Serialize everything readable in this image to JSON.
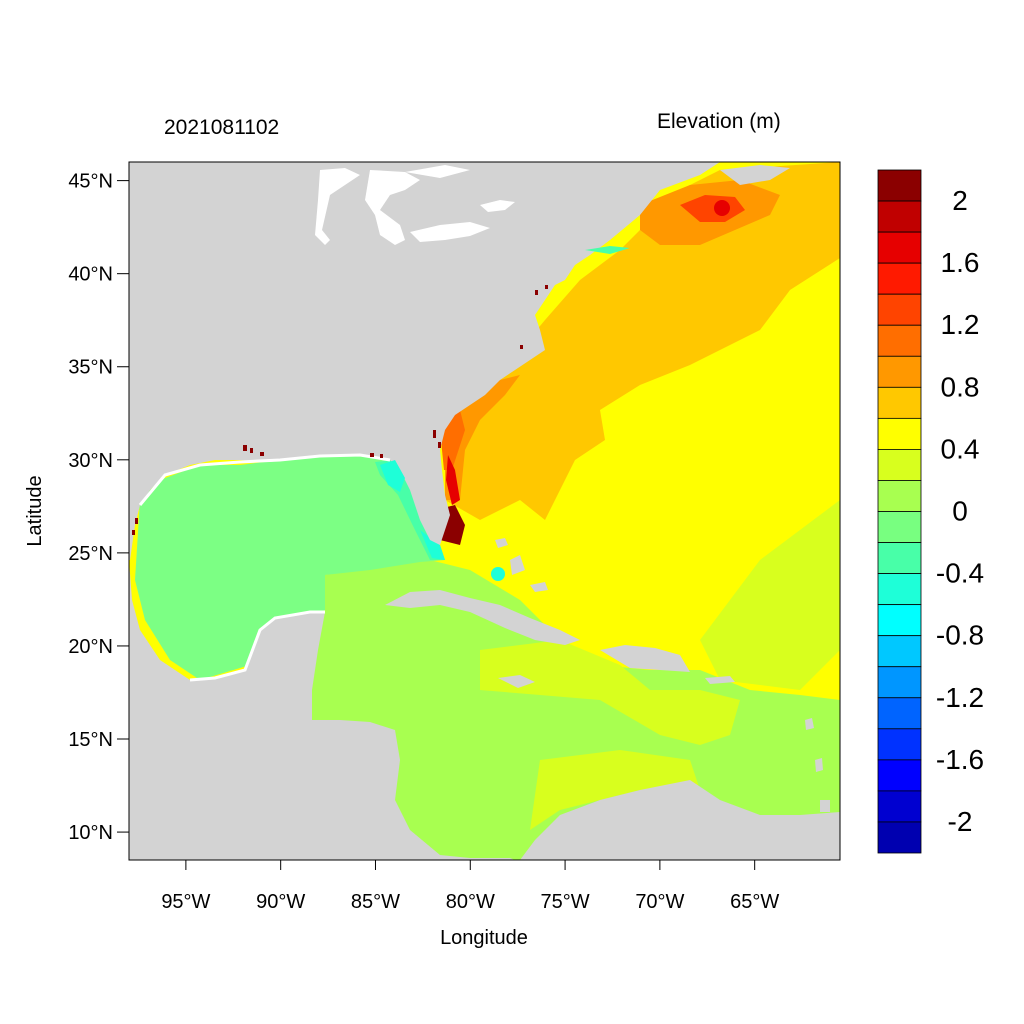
{
  "header": {
    "date_label": "2021081102",
    "variable_label": "Elevation (m)"
  },
  "axes": {
    "xlabel": "Longitude",
    "ylabel": "Latitude",
    "x_ticks": [
      "95°W",
      "90°W",
      "85°W",
      "80°W",
      "75°W",
      "70°W",
      "65°W"
    ],
    "y_ticks": [
      "45°N",
      "40°N",
      "35°N",
      "30°N",
      "25°N",
      "20°N",
      "15°N",
      "10°N"
    ],
    "x_tick_values": [
      -95,
      -90,
      -85,
      -80,
      -75,
      -70,
      -65
    ],
    "y_tick_values": [
      45,
      40,
      35,
      30,
      25,
      20,
      15,
      10
    ],
    "lon_range": [
      -98,
      -60.5
    ],
    "lat_range": [
      8.5,
      46
    ]
  },
  "colorbar": {
    "labels": [
      "2",
      "1.6",
      "1.2",
      "0.8",
      "0.4",
      "0",
      "-0.4",
      "-0.8",
      "-1.2",
      "-1.6",
      "-2"
    ],
    "colors": [
      "#8b0000",
      "#c00000",
      "#e60000",
      "#ff1a00",
      "#ff4400",
      "#ff6e00",
      "#ff9800",
      "#ffc800",
      "#ffff00",
      "#d8ff1e",
      "#a8ff50",
      "#78ff80",
      "#48ffa8",
      "#1effd8",
      "#00ffff",
      "#00c8ff",
      "#0096ff",
      "#0064ff",
      "#0032ff",
      "#0000ff",
      "#0000d0",
      "#0000b0"
    ]
  },
  "map_colors": {
    "land": "#d3d3d3",
    "gulf": "#7cff84",
    "caribbean": "#a8ff50",
    "atlantic": "#ffff00",
    "coastal_shelf": "#ffc800",
    "gulf_of_maine": "#ff9800",
    "maine_peak": "#ff4400",
    "surge_red": "#8b0000"
  }
}
